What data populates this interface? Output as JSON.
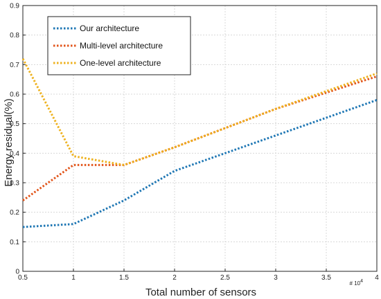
{
  "chart_data": {
    "type": "line",
    "xlabel": "Total number of sensors",
    "ylabel": "Energy residual(%)",
    "x_multiplier_label": "# 10",
    "x_multiplier_exp": "4",
    "x": [
      0.5,
      1,
      1.5,
      2,
      2.5,
      3,
      3.5,
      4
    ],
    "x_tick_labels": [
      "0.5",
      "1",
      "1.5",
      "2",
      "2.5",
      "3",
      "3.5",
      "4"
    ],
    "xlim": [
      0.5,
      4
    ],
    "ylim": [
      0,
      0.9
    ],
    "y_ticks": [
      0,
      0.1,
      0.2,
      0.3,
      0.4,
      0.5,
      0.6,
      0.7,
      0.8,
      0.9
    ],
    "y_tick_labels": [
      "0",
      "0.1",
      "0.2",
      "0.3",
      "0.4",
      "0.5",
      "0.6",
      "0.7",
      "0.8",
      "0.9"
    ],
    "grid": true,
    "legend_position": "top-left",
    "series": [
      {
        "name": "Our architecture",
        "color": "#1f77b4",
        "values": [
          0.15,
          0.16,
          0.24,
          0.34,
          0.4,
          0.46,
          0.52,
          0.58
        ]
      },
      {
        "name": "Multi-level architecture",
        "color": "#e2561c",
        "values": [
          0.24,
          0.36,
          0.36,
          0.42,
          0.485,
          0.55,
          0.605,
          0.66
        ]
      },
      {
        "name": "One-level architecture",
        "color": "#eeb21f",
        "values": [
          0.72,
          0.39,
          0.36,
          0.42,
          0.485,
          0.55,
          0.61,
          0.67
        ]
      }
    ]
  }
}
